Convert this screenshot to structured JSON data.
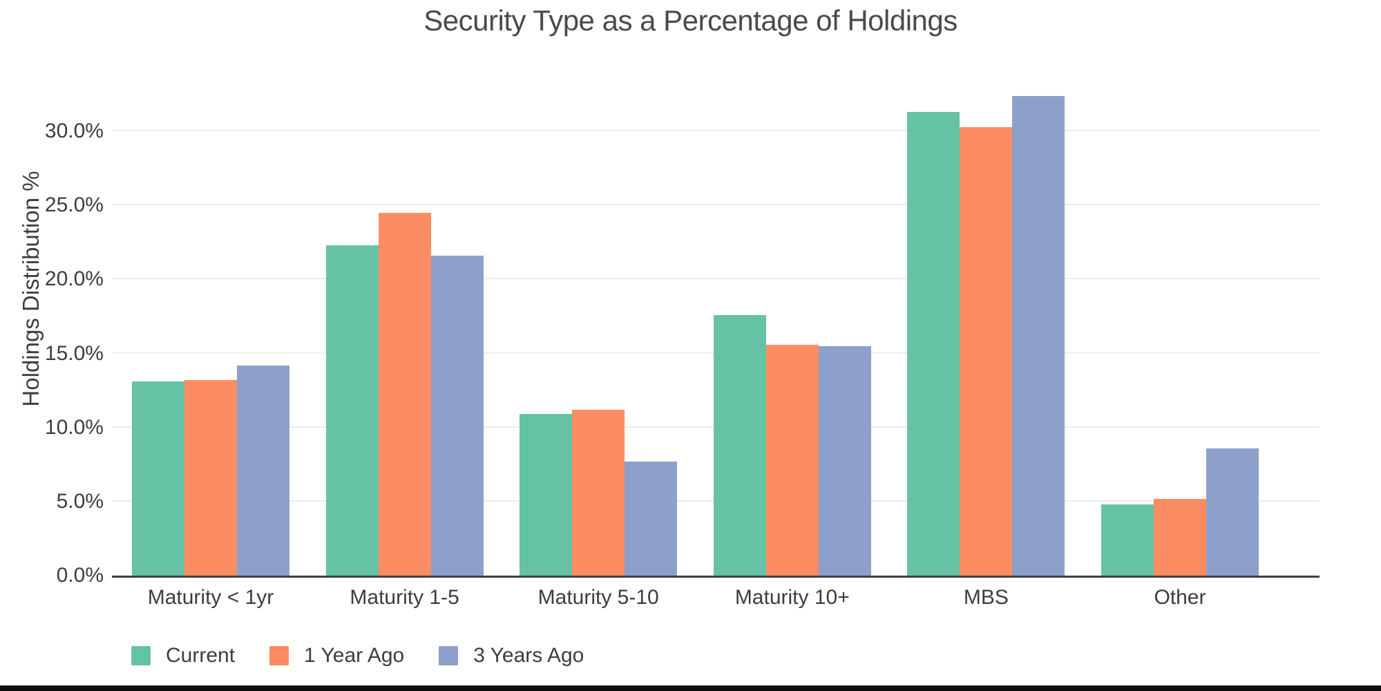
{
  "chart_data": {
    "type": "bar",
    "title": "Security Type as a Percentage of Holdings",
    "ylabel": "Holdings Distribution %",
    "xlabel": "",
    "categories": [
      "Maturity < 1yr",
      "Maturity 1-5",
      "Maturity 5-10",
      "Maturity 10+",
      "MBS",
      "Other"
    ],
    "series": [
      {
        "name": "Current",
        "color": "#66c2a5",
        "values": [
          13.1,
          22.3,
          10.9,
          17.6,
          31.3,
          4.8
        ]
      },
      {
        "name": "1 Year Ago",
        "color": "#fc8d62",
        "values": [
          13.2,
          24.5,
          11.2,
          15.6,
          30.3,
          5.2
        ]
      },
      {
        "name": "3 Years Ago",
        "color": "#8da0cb",
        "values": [
          14.2,
          21.6,
          7.7,
          15.5,
          32.4,
          8.6
        ]
      }
    ],
    "yticks": [
      {
        "value": 0,
        "label": "0.0%"
      },
      {
        "value": 5,
        "label": "5.0%"
      },
      {
        "value": 10,
        "label": "10.0%"
      },
      {
        "value": 15,
        "label": "15.0%"
      },
      {
        "value": 20,
        "label": "20.0%"
      },
      {
        "value": 25,
        "label": "25.0%"
      },
      {
        "value": 30,
        "label": "30.0%"
      }
    ],
    "ylim": [
      0,
      34.3
    ],
    "grid": true,
    "legend_position": "bottom-left",
    "colors": {
      "title_text": "#4a4a4a",
      "axis_text": "#3d3d3d",
      "axis_line": "#3f3f3f",
      "gridline": "#ececec",
      "background": "#ffffff"
    }
  }
}
